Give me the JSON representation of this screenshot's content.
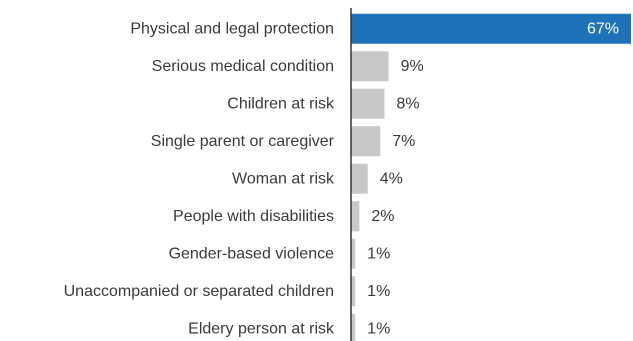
{
  "chart_data": {
    "type": "bar",
    "orientation": "horizontal",
    "title": "",
    "xlabel": "",
    "ylabel": "",
    "categories": [
      "Physical and legal protection",
      "Serious medical condition",
      "Children at risk",
      "Single parent or caregiver",
      "Woman at risk",
      "People with disabilities",
      "Gender-based violence",
      "Unaccompanied or separated children",
      "Eldery person at risk"
    ],
    "values": [
      67,
      9,
      8,
      7,
      4,
      2,
      1,
      1,
      1
    ],
    "value_labels": [
      "67%",
      "9%",
      "8%",
      "7%",
      "4%",
      "2%",
      "1%",
      "1%",
      "1%"
    ],
    "unit": "%",
    "xlim": [
      0,
      67
    ],
    "grid": false,
    "legend": "none",
    "colors": {
      "highlight": "#1f72b8",
      "default": "#c8c8c8",
      "axis": "#333333",
      "text": "#3a3a3a"
    }
  }
}
